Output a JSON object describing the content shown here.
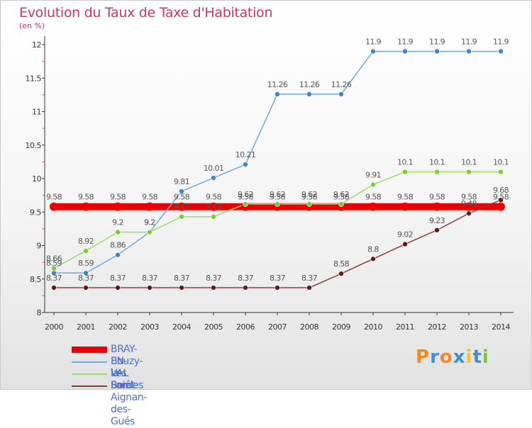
{
  "header": {
    "title": "Evolution du Taux de Taxe d'Habitation",
    "subtitle": "(en %)"
  },
  "chart_data": {
    "type": "line",
    "x": [
      "2000",
      "2001",
      "2002",
      "2003",
      "2004",
      "2005",
      "2006",
      "2007",
      "2008",
      "2009",
      "2010",
      "2011",
      "2012",
      "2013",
      "2014"
    ],
    "ylim": [
      8,
      12
    ],
    "yticks": [
      "8",
      "8.5",
      "9",
      "9.5",
      "10",
      "10.5",
      "11",
      "11.5",
      "12"
    ],
    "title": "Evolution du Taux de Taxe d'Habitation",
    "ylabel": "(en %)",
    "grid": false,
    "legend_position": "bottom-left",
    "series": [
      {
        "name": "BRAY-EN-VAL",
        "color": "#ee0000",
        "marker_color": "#ee0000",
        "values": [
          9.58,
          9.58,
          9.58,
          9.58,
          9.58,
          9.58,
          9.58,
          9.58,
          9.58,
          9.58,
          9.58,
          9.58,
          9.58,
          9.58,
          9.58
        ],
        "labels": [
          "9.58",
          "9.58",
          "9.58",
          "9.58",
          "9.58",
          "9.58",
          "9.58",
          "9.58",
          "9.58",
          "9.58",
          "9.58",
          "9.58",
          "9.58",
          "9.58",
          "9.58"
        ]
      },
      {
        "name": "Bouzy-la-Forêt",
        "color": "#6fa8dc",
        "marker_color": "#3d85c6",
        "values": [
          8.59,
          8.59,
          8.86,
          9.2,
          9.81,
          10.01,
          10.21,
          11.26,
          11.26,
          11.26,
          11.9,
          11.9,
          11.9,
          11.9,
          11.9
        ],
        "labels": [
          "8.59",
          "8.59",
          "8.86",
          "9.2",
          "9.81",
          "10.01",
          "10.21",
          "11.26",
          "11.26",
          "11.26",
          "11.9",
          "11.9",
          "11.9",
          "11.9",
          "11.9"
        ]
      },
      {
        "name": "Les Bordes",
        "color": "#99dd66",
        "marker_color": "#77cc33",
        "values": [
          8.66,
          8.92,
          9.2,
          9.2,
          9.43,
          9.43,
          9.62,
          9.62,
          9.62,
          9.62,
          9.91,
          10.1,
          10.1,
          10.1,
          10.1
        ],
        "labels": [
          "8.66",
          "8.92",
          "9.2",
          "9.2",
          "9.43",
          "9.43",
          "9.62",
          "9.62",
          "9.62",
          "9.62",
          "9.91",
          "10.1",
          "10.1",
          "10.1",
          "10.1"
        ]
      },
      {
        "name": "Saint-Aignan-des-Gués",
        "color": "#8b3a3a",
        "marker_color": "#5c1a1a",
        "values": [
          8.37,
          8.37,
          8.37,
          8.37,
          8.37,
          8.37,
          8.37,
          8.37,
          8.37,
          8.58,
          8.8,
          9.02,
          9.23,
          9.48,
          9.68
        ],
        "labels": [
          "8.37",
          "8.37",
          "8.37",
          "8.37",
          "8.37",
          "8.37",
          "8.37",
          "8.37",
          "8.37",
          "8.58",
          "8.8",
          "9.02",
          "9.23",
          "9.48",
          "9.68"
        ]
      }
    ]
  },
  "legend": {
    "items": [
      {
        "label": "BRAY-EN-VAL",
        "color": "#ee0000",
        "text_color": "#4a6fc8"
      },
      {
        "label": "Bouzy-la-Forêt",
        "color": "#6fa8dc",
        "text_color": "#4a6fc8"
      },
      {
        "label": "Les Bordes",
        "color": "#99dd66",
        "text_color": "#4a6fc8"
      },
      {
        "label": "Saint-Aignan-des-Gués",
        "color": "#8b3a3a",
        "text_color": "#4a6fc8"
      }
    ]
  },
  "logo": {
    "text": "Proxiti",
    "letters": [
      "P",
      "r",
      "o",
      "x",
      "i",
      "t",
      "i"
    ],
    "colors": [
      "#f08a24",
      "#3b8fd4",
      "#f08a24",
      "#3b8fd4",
      "#f2c230",
      "#3b8fd4",
      "#7ac142"
    ]
  }
}
